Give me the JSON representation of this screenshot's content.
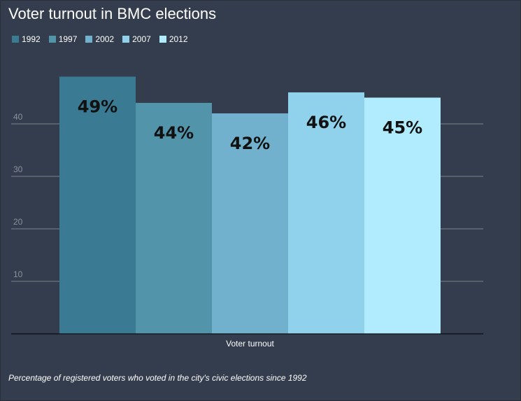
{
  "chart_data": {
    "type": "bar",
    "title": "Voter turnout in BMC elections",
    "categories": [
      "Voter turnout"
    ],
    "series": [
      {
        "name": "1992",
        "values": [
          49
        ],
        "label": "49%",
        "color": "#3a7a93"
      },
      {
        "name": "1997",
        "values": [
          44
        ],
        "label": "44%",
        "color": "#5294aa"
      },
      {
        "name": "2002",
        "values": [
          42
        ],
        "label": "42%",
        "color": "#72b1cd"
      },
      {
        "name": "2007",
        "values": [
          46
        ],
        "label": "46%",
        "color": "#90d2ec"
      },
      {
        "name": "2012",
        "values": [
          45
        ],
        "label": "45%",
        "color": "#b0ecfd"
      }
    ],
    "yticks": [
      10,
      20,
      30,
      40
    ],
    "ylim": [
      0,
      50
    ],
    "grid": true,
    "legend": "top-left",
    "xlabel": "",
    "ylabel": "",
    "caption": "Percentage of registered voters who voted in the city's civic elections since 1992"
  },
  "colors": {
    "background": "#343d4d",
    "gridline": "#7b828d",
    "tick_text": "#8a919c",
    "data_label": "#111111"
  }
}
